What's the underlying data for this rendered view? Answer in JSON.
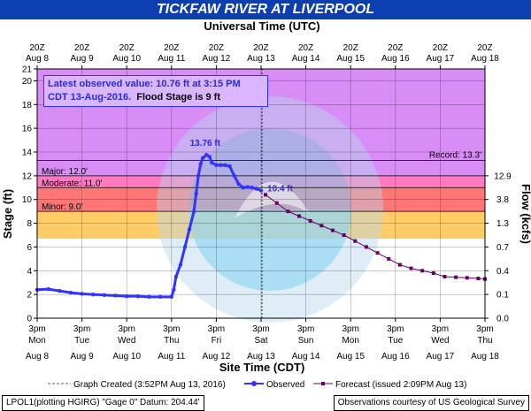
{
  "title": "TICKFAW RIVER AT LIVERPOOL",
  "info_box": {
    "line1": "Latest observed value: 10.76 ft at 3:15 PM",
    "line2": "CDT 13-Aug-2016.",
    "flood_note": "Flood Stage is 9 ft"
  },
  "footer": {
    "left": "LPOL1(plotting HGIRG) \"Gage 0\" Datum: 204.44'",
    "right": "Observations courtesy of US Geological Survey"
  },
  "colors": {
    "title_bg": "#0b3fb0",
    "record_zone": "#d88cf5",
    "major_zone": "#ff7ac0",
    "moderate_zone": "#ff7676",
    "minor_zone": "#ffcc66",
    "observed": "#3333ff",
    "forecast": "#660066"
  },
  "chart_data": {
    "type": "line",
    "top_axis_label": "Universal Time (UTC)",
    "xlabel": "Site Time (CDT)",
    "ylabel": "Stage (ft)",
    "y2label": "Flow (kcfs)",
    "ylim": [
      0,
      21
    ],
    "y_ticks": [
      0,
      2,
      4,
      6,
      8,
      10,
      12,
      14,
      16,
      18,
      20,
      21
    ],
    "y2_ticks": [
      {
        "stage": 0,
        "label": "0.0"
      },
      {
        "stage": 2,
        "label": "0.1"
      },
      {
        "stage": 4,
        "label": "0.4"
      },
      {
        "stage": 6,
        "label": "0.7"
      },
      {
        "stage": 8,
        "label": "1.3"
      },
      {
        "stage": 10,
        "label": "3.8"
      },
      {
        "stage": 12,
        "label": "12.9"
      }
    ],
    "xlim_days": [
      8,
      18
    ],
    "bottom_ticks": [
      {
        "day": 8,
        "time": "3pm",
        "dow": "Mon",
        "date": "Aug 8"
      },
      {
        "day": 9,
        "time": "3pm",
        "dow": "Tue",
        "date": "Aug 9"
      },
      {
        "day": 10,
        "time": "3pm",
        "dow": "Wed",
        "date": "Aug 10"
      },
      {
        "day": 11,
        "time": "3pm",
        "dow": "Thu",
        "date": "Aug 11"
      },
      {
        "day": 12,
        "time": "3pm",
        "dow": "Fri",
        "date": "Aug 12"
      },
      {
        "day": 13,
        "time": "3pm",
        "dow": "Sat",
        "date": "Aug 13"
      },
      {
        "day": 14,
        "time": "3pm",
        "dow": "Sun",
        "date": "Aug 14"
      },
      {
        "day": 15,
        "time": "3pm",
        "dow": "Mon",
        "date": "Aug 15"
      },
      {
        "day": 16,
        "time": "3pm",
        "dow": "Tue",
        "date": "Aug 16"
      },
      {
        "day": 17,
        "time": "3pm",
        "dow": "Wed",
        "date": "Aug 17"
      },
      {
        "day": 18,
        "time": "3pm",
        "dow": "Thu",
        "date": "Aug 18"
      }
    ],
    "top_ticks": [
      {
        "day": 8,
        "time": "20Z",
        "date": "Aug 8"
      },
      {
        "day": 9,
        "time": "20Z",
        "date": "Aug 9"
      },
      {
        "day": 10,
        "time": "20Z",
        "date": "Aug 10"
      },
      {
        "day": 11,
        "time": "20Z",
        "date": "Aug 11"
      },
      {
        "day": 12,
        "time": "20Z",
        "date": "Aug 12"
      },
      {
        "day": 13,
        "time": "20Z",
        "date": "Aug 13"
      },
      {
        "day": 14,
        "time": "20Z",
        "date": "Aug 14"
      },
      {
        "day": 15,
        "time": "20Z",
        "date": "Aug 15"
      },
      {
        "day": 16,
        "time": "20Z",
        "date": "Aug 16"
      },
      {
        "day": 17,
        "time": "20Z",
        "date": "Aug 17"
      },
      {
        "day": 18,
        "time": "20Z",
        "date": "Aug 18"
      }
    ],
    "flood_categories": [
      {
        "name": "Record",
        "label": "Record: 13.3'",
        "stage": 13.3
      },
      {
        "name": "Major",
        "label": "Major: 12.0'",
        "stage": 12.0
      },
      {
        "name": "Moderate",
        "label": "Moderate: 11.0'",
        "stage": 11.0
      },
      {
        "name": "Minor",
        "label": "Minor: 9.0'",
        "stage": 9.0
      }
    ],
    "graph_created_day": 13.02,
    "annotations": [
      {
        "text": "13.76 ft",
        "day": 11.85,
        "stage": 13.76
      },
      {
        "text": "10.4 ft",
        "day": 13.1,
        "stage": 10.4
      }
    ],
    "legend": {
      "graph_created": "Graph Created (3:52PM Aug 13, 2016)",
      "observed": "Observed",
      "forecast": "Forecast (issued 2:09PM Aug 13)"
    },
    "series": [
      {
        "name": "Observed",
        "points": [
          [
            8.0,
            2.4
          ],
          [
            8.25,
            2.45
          ],
          [
            8.5,
            2.3
          ],
          [
            8.75,
            2.15
          ],
          [
            9.0,
            2.05
          ],
          [
            9.25,
            2.0
          ],
          [
            9.5,
            1.95
          ],
          [
            9.75,
            1.9
          ],
          [
            10.0,
            1.85
          ],
          [
            10.25,
            1.85
          ],
          [
            10.5,
            1.8
          ],
          [
            10.75,
            1.8
          ],
          [
            11.0,
            1.8
          ],
          [
            11.05,
            2.4
          ],
          [
            11.1,
            3.5
          ],
          [
            11.2,
            4.5
          ],
          [
            11.3,
            6.0
          ],
          [
            11.4,
            7.5
          ],
          [
            11.5,
            9.0
          ],
          [
            11.55,
            10.5
          ],
          [
            11.6,
            12.0
          ],
          [
            11.65,
            13.0
          ],
          [
            11.7,
            13.5
          ],
          [
            11.78,
            13.76
          ],
          [
            11.85,
            13.6
          ],
          [
            11.9,
            13.1
          ],
          [
            12.0,
            12.9
          ],
          [
            12.1,
            12.9
          ],
          [
            12.2,
            12.9
          ],
          [
            12.3,
            12.8
          ],
          [
            12.4,
            12.0
          ],
          [
            12.5,
            11.3
          ],
          [
            12.6,
            11.0
          ],
          [
            12.7,
            11.05
          ],
          [
            12.8,
            11.0
          ],
          [
            12.9,
            10.9
          ],
          [
            13.0,
            10.76
          ]
        ]
      },
      {
        "name": "Forecast",
        "points": [
          [
            13.1,
            10.4
          ],
          [
            13.35,
            9.7
          ],
          [
            13.6,
            9.0
          ],
          [
            13.85,
            8.6
          ],
          [
            14.1,
            8.2
          ],
          [
            14.35,
            7.8
          ],
          [
            14.6,
            7.4
          ],
          [
            14.85,
            7.0
          ],
          [
            15.1,
            6.5
          ],
          [
            15.35,
            6.0
          ],
          [
            15.6,
            5.5
          ],
          [
            15.85,
            5.0
          ],
          [
            16.1,
            4.5
          ],
          [
            16.35,
            4.2
          ],
          [
            16.6,
            4.0
          ],
          [
            16.85,
            3.8
          ],
          [
            17.1,
            3.5
          ],
          [
            17.35,
            3.45
          ],
          [
            17.6,
            3.4
          ],
          [
            17.85,
            3.35
          ],
          [
            18.0,
            3.3
          ]
        ]
      }
    ]
  }
}
